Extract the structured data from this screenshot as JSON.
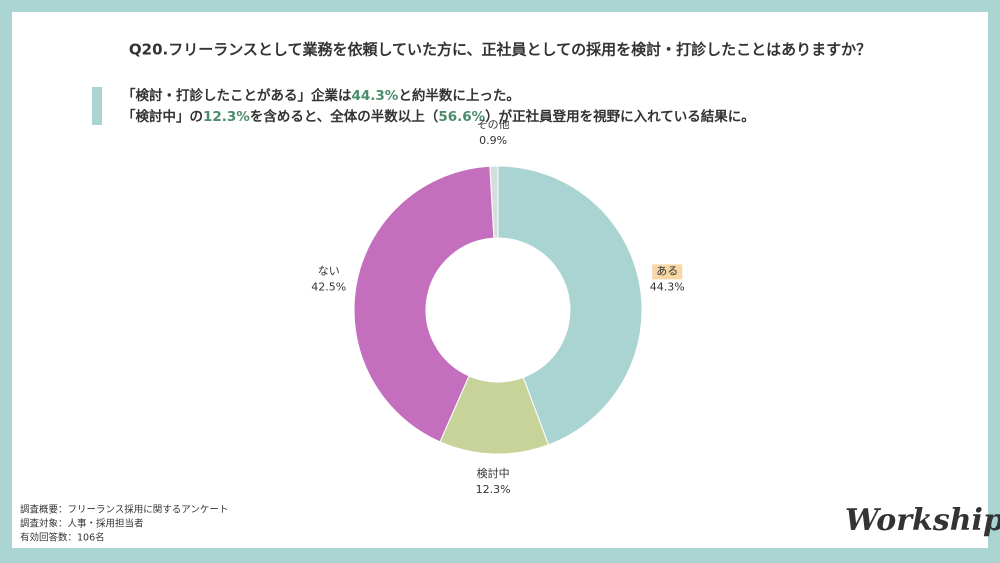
{
  "chart_data": {
    "type": "donut",
    "title": "Q20.フリーランスとして業務を依頼していた方に、正社員としての採用を検討・打診したことはありますか？",
    "subtitle": [
      [
        "「検討・打診したことがある」企業は",
        "44.3%",
        "と約半数に上った。"
      ],
      [
        "「検討中」の",
        "12.3%",
        "を含めると、全体の半数以上（",
        "56.6%",
        "）が正社員登用を視野に入れている結果に。"
      ]
    ],
    "categories": [
      "ある",
      "検討中",
      "ない",
      "その他"
    ],
    "values": [
      44.3,
      12.3,
      42.5,
      0.9
    ],
    "value_labels": [
      "44.3%",
      "12.3%",
      "42.5%",
      "0.9%"
    ],
    "colors": [
      "#a9d4d2",
      "#c8d39a",
      "#c46fbd",
      "#d6dedd"
    ],
    "highlight": 0,
    "notes": [
      "調査概要：フリーランス採用に関するアンケート",
      "調査対象：人事・採用担当者",
      "有効回答数：106名"
    ],
    "logo": "Workship"
  }
}
